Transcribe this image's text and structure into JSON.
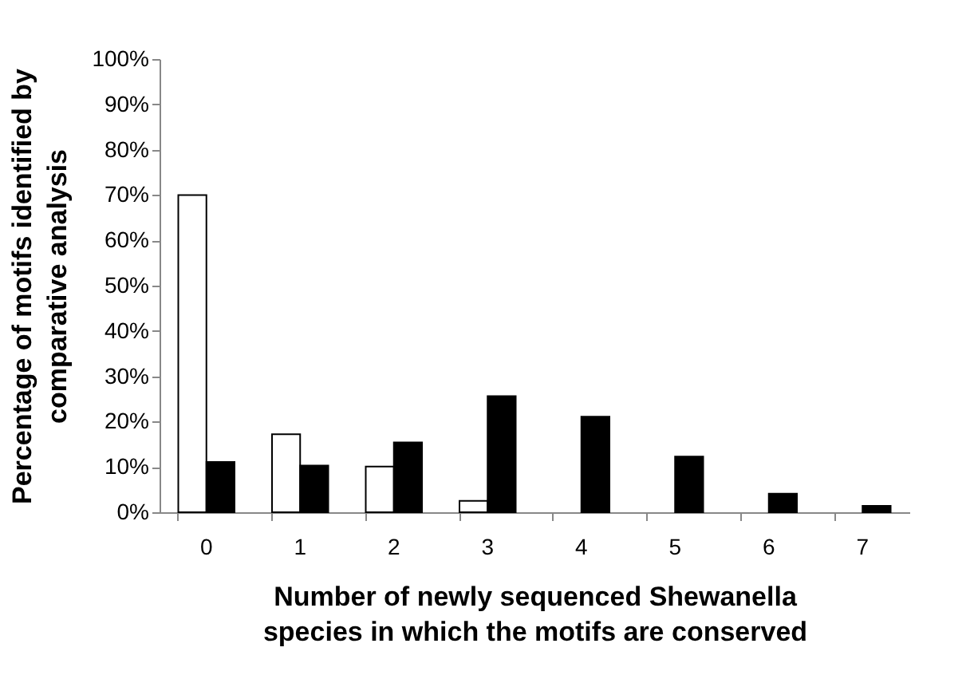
{
  "chart_data": {
    "type": "bar",
    "xlabel": "Number of newly sequenced Shewanella\nspecies in which the motifs are conserved",
    "ylabel": "Percentage of motifs identified by\ncomparative analysis",
    "categories": [
      "0",
      "1",
      "2",
      "3",
      "4",
      "5",
      "6",
      "7"
    ],
    "series": [
      {
        "color": "#ffffff",
        "values": [
          70,
          17.2,
          10.1,
          2.5,
          0,
          0,
          0,
          0
        ]
      },
      {
        "color": "#000000",
        "values": [
          11.1,
          10.3,
          15.4,
          25.6,
          21.1,
          12.3,
          4.1,
          1.4
        ]
      }
    ],
    "ylim": [
      0,
      100
    ],
    "yticks": [
      {
        "value": 0,
        "label": "0%"
      },
      {
        "value": 10,
        "label": "10%"
      },
      {
        "value": 20,
        "label": "20%"
      },
      {
        "value": 30,
        "label": "30%"
      },
      {
        "value": 40,
        "label": "40%"
      },
      {
        "value": 50,
        "label": "50%"
      },
      {
        "value": 60,
        "label": "60%"
      },
      {
        "value": 70,
        "label": "70%"
      },
      {
        "value": 80,
        "label": "80%"
      },
      {
        "value": 90,
        "label": "90%"
      },
      {
        "value": 100,
        "label": "100%"
      }
    ],
    "grid": false,
    "legend": false
  }
}
